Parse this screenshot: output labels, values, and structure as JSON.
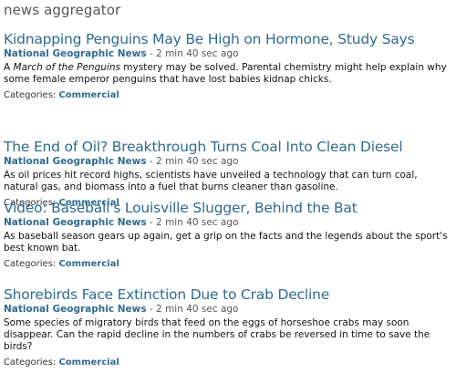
{
  "page": {
    "title": "news aggregator"
  },
  "articles": [
    {
      "headline": "Kidnapping Penguins May Be High on Hormone, Study Says",
      "source": "National Geographic News",
      "time": " - 2 min 40 sec ago",
      "summary_prefix": "A ",
      "summary_italic": "March of the Penguins",
      "summary_rest": " mystery may be solved. Parental chemistry might help explain why some female emperor penguins that have lost babies kidnap chicks.",
      "categories_label": "Categories: ",
      "category": "Commercial"
    },
    {
      "headline": "The End of Oil? Breakthrough Turns Coal Into Clean Diesel",
      "source": "National Geographic News",
      "time": " - 2 min 40 sec ago",
      "summary": "As oil prices hit record highs, scientists have unveiled a technology that can turn coal, natural gas, and biomass into a fuel that burns cleaner than gasoline.",
      "categories_label": "Categories: ",
      "category": "Commercial"
    },
    {
      "headline": "Video: Baseball's Louisville Slugger, Behind the Bat",
      "source": "National Geographic News",
      "time": " - 2 min 40 sec ago",
      "summary": "As baseball season gears up again, get a grip on the facts and the legends about the sport's best known bat.",
      "categories_label": "Categories: ",
      "category": "Commercial"
    },
    {
      "headline": "Shorebirds Face Extinction Due to Crab Decline",
      "source": "National Geographic News",
      "time": " - 2 min 40 sec ago",
      "summary": "Some species of migratory birds that feed on the eggs of horseshoe crabs may soon disappear. Can the rapid decline in the numbers of crabs be reversed in time to save the birds?",
      "categories_label": "Categories: ",
      "category": "Commercial"
    }
  ],
  "colors": {
    "link": "#2f6b8e",
    "title": "#555555"
  }
}
